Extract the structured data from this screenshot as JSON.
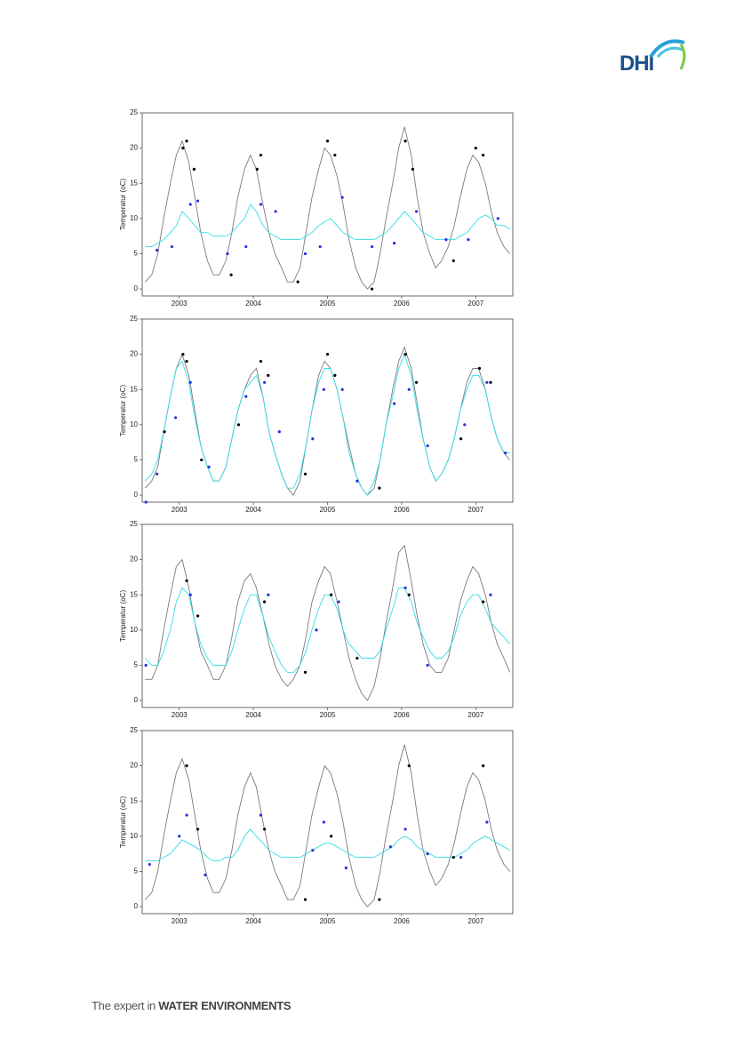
{
  "logo": "DHI",
  "footer": {
    "lead": "The expert in",
    "strong": "WATER ENVIRONMENTS"
  },
  "chart_data": [
    {
      "type": "line",
      "y_label": "Temperatur (oC)",
      "xlim": [
        2003,
        2008
      ],
      "ylim": [
        -1,
        25
      ],
      "yticks": [
        0,
        5,
        10,
        15,
        20,
        25
      ],
      "xticks": [
        {
          "value": 2003.5,
          "label": "2003"
        },
        {
          "value": 2004.5,
          "label": "2004"
        },
        {
          "value": 2005.5,
          "label": "2005"
        },
        {
          "value": 2006.5,
          "label": "2006"
        },
        {
          "value": 2007.5,
          "label": "2007"
        }
      ],
      "x": [
        2003.04,
        2003.13,
        2003.21,
        2003.29,
        2003.38,
        2003.46,
        2003.54,
        2003.63,
        2003.71,
        2003.79,
        2003.88,
        2003.96,
        2004.04,
        2004.13,
        2004.21,
        2004.29,
        2004.38,
        2004.46,
        2004.54,
        2004.63,
        2004.71,
        2004.79,
        2004.88,
        2004.96,
        2005.04,
        2005.13,
        2005.21,
        2005.29,
        2005.38,
        2005.46,
        2005.54,
        2005.63,
        2005.71,
        2005.79,
        2005.88,
        2005.96,
        2006.04,
        2006.13,
        2006.21,
        2006.29,
        2006.38,
        2006.46,
        2006.54,
        2006.63,
        2006.71,
        2006.79,
        2006.88,
        2006.96,
        2007.04,
        2007.13,
        2007.21,
        2007.29,
        2007.38,
        2007.46,
        2007.54,
        2007.63,
        2007.71,
        2007.79,
        2007.88,
        2007.96
      ],
      "series": [
        {
          "color": "#7a7a7a",
          "values": [
            1,
            2,
            5,
            10,
            15,
            19,
            21,
            18,
            13,
            8,
            4,
            2,
            2,
            4,
            8,
            13,
            17,
            19,
            17,
            12,
            8,
            5,
            3,
            1,
            1,
            3,
            8,
            13,
            17,
            20,
            19,
            16,
            12,
            7,
            3,
            1,
            0,
            1,
            5,
            10,
            15,
            20,
            23,
            19,
            13,
            8,
            5,
            3,
            4,
            6,
            9,
            13,
            17,
            19,
            18,
            15,
            11,
            8,
            6,
            5
          ]
        },
        {
          "color": "#33dde6",
          "values": [
            6,
            6,
            6.5,
            7,
            8,
            9,
            11,
            10,
            9,
            8,
            8,
            7.5,
            7.5,
            7.5,
            8,
            9,
            10,
            12,
            11,
            9,
            8,
            7.5,
            7,
            7,
            7,
            7,
            7.5,
            8,
            9,
            9.5,
            10,
            9,
            8,
            7.5,
            7,
            7,
            7,
            7,
            7.5,
            8,
            9,
            10,
            11,
            10,
            9,
            8,
            7.5,
            7,
            7,
            7,
            7,
            7.5,
            8,
            9,
            10,
            10.5,
            10,
            9,
            9,
            8.5
          ]
        }
      ],
      "scatter": [
        {
          "color": "#000000",
          "x": [
            2003.55,
            2003.6,
            2003.7,
            2004.2,
            2004.55,
            2004.6,
            2005.1,
            2005.5,
            2005.6,
            2006.1,
            2006.55,
            2006.65,
            2007.2,
            2007.5,
            2007.6
          ],
          "values": [
            20,
            21,
            17,
            2,
            17,
            19,
            1,
            21,
            19,
            0,
            21,
            17,
            4,
            20,
            19
          ]
        },
        {
          "color": "#2233dd",
          "x": [
            2003.2,
            2003.4,
            2003.65,
            2003.75,
            2004.15,
            2004.4,
            2004.6,
            2004.8,
            2005.2,
            2005.4,
            2005.7,
            2006.1,
            2006.4,
            2006.7,
            2007.1,
            2007.4,
            2007.8
          ],
          "values": [
            5.5,
            6,
            12,
            12.5,
            5,
            6,
            12,
            11,
            5,
            6,
            13,
            6,
            6.5,
            11,
            7,
            7,
            10
          ]
        }
      ]
    },
    {
      "type": "line",
      "y_label": "Temperatur (oC)",
      "xlim": [
        2003,
        2008
      ],
      "ylim": [
        -1,
        25
      ],
      "yticks": [
        0,
        5,
        10,
        15,
        20,
        25
      ],
      "xticks": [
        {
          "value": 2003.5,
          "label": "2003"
        },
        {
          "value": 2004.5,
          "label": "2004"
        },
        {
          "value": 2005.5,
          "label": "2005"
        },
        {
          "value": 2006.5,
          "label": "2006"
        },
        {
          "value": 2007.5,
          "label": "2007"
        }
      ],
      "x": [
        2003.04,
        2003.13,
        2003.21,
        2003.29,
        2003.38,
        2003.46,
        2003.54,
        2003.63,
        2003.71,
        2003.79,
        2003.88,
        2003.96,
        2004.04,
        2004.13,
        2004.21,
        2004.29,
        2004.38,
        2004.46,
        2004.54,
        2004.63,
        2004.71,
        2004.79,
        2004.88,
        2004.96,
        2005.04,
        2005.13,
        2005.21,
        2005.29,
        2005.38,
        2005.46,
        2005.54,
        2005.63,
        2005.71,
        2005.79,
        2005.88,
        2005.96,
        2006.04,
        2006.13,
        2006.21,
        2006.29,
        2006.38,
        2006.46,
        2006.54,
        2006.63,
        2006.71,
        2006.79,
        2006.88,
        2006.96,
        2007.04,
        2007.13,
        2007.21,
        2007.29,
        2007.38,
        2007.46,
        2007.54,
        2007.63,
        2007.71,
        2007.79,
        2007.88,
        2007.96
      ],
      "series": [
        {
          "color": "#7a7a7a",
          "values": [
            1,
            2,
            4,
            9,
            14,
            18,
            20,
            17,
            12,
            7,
            4,
            2,
            2,
            4,
            8,
            12,
            15,
            17,
            18,
            14,
            9,
            6,
            3,
            1,
            0,
            2,
            7,
            12,
            17,
            19,
            18,
            15,
            11,
            7,
            3,
            1,
            0,
            1,
            5,
            10,
            15,
            19,
            21,
            18,
            13,
            8,
            4,
            2,
            3,
            5,
            8,
            12,
            16,
            18,
            18,
            15,
            11,
            8,
            6,
            5
          ]
        },
        {
          "color": "#33dde6",
          "values": [
            2,
            3,
            5,
            9,
            14,
            18,
            19,
            16,
            11,
            7,
            4,
            2,
            2,
            4,
            8,
            12,
            15,
            16,
            17,
            14,
            9,
            6,
            3,
            1,
            1,
            3,
            7,
            12,
            16,
            18,
            18,
            15,
            11,
            6,
            3,
            1,
            0,
            2,
            5,
            10,
            14,
            18,
            20,
            17,
            12,
            8,
            4,
            2,
            3,
            5,
            8,
            12,
            15,
            17,
            17,
            15,
            11,
            8,
            6,
            6
          ]
        }
      ],
      "scatter": [
        {
          "color": "#000000",
          "x": [
            2003.3,
            2003.55,
            2003.6,
            2003.8,
            2004.3,
            2004.6,
            2004.7,
            2005.2,
            2005.5,
            2005.6,
            2006.2,
            2006.55,
            2006.7,
            2007.3,
            2007.55,
            2007.7
          ],
          "values": [
            9,
            20,
            19,
            5,
            10,
            19,
            17,
            3,
            20,
            17,
            1,
            20,
            16,
            8,
            18,
            16
          ]
        },
        {
          "color": "#2233dd",
          "x": [
            2003.05,
            2003.2,
            2003.45,
            2003.65,
            2003.9,
            2004.4,
            2004.65,
            2004.85,
            2005.3,
            2005.45,
            2005.7,
            2005.9,
            2006.4,
            2006.6,
            2006.85,
            2007.35,
            2007.65,
            2007.9
          ],
          "values": [
            -1,
            3,
            11,
            16,
            4,
            14,
            16,
            9,
            8,
            15,
            15,
            2,
            13,
            15,
            7,
            10,
            16,
            6
          ]
        }
      ]
    },
    {
      "type": "line",
      "y_label": "Temperatur (oC)",
      "xlim": [
        2003,
        2008
      ],
      "ylim": [
        -1,
        25
      ],
      "yticks": [
        0,
        5,
        10,
        15,
        20,
        25
      ],
      "xticks": [
        {
          "value": 2003.5,
          "label": "2003"
        },
        {
          "value": 2004.5,
          "label": "2004"
        },
        {
          "value": 2005.5,
          "label": "2005"
        },
        {
          "value": 2006.5,
          "label": "2006"
        },
        {
          "value": 2007.5,
          "label": "2007"
        }
      ],
      "x": [
        2003.04,
        2003.13,
        2003.21,
        2003.29,
        2003.38,
        2003.46,
        2003.54,
        2003.63,
        2003.71,
        2003.79,
        2003.88,
        2003.96,
        2004.04,
        2004.13,
        2004.21,
        2004.29,
        2004.38,
        2004.46,
        2004.54,
        2004.63,
        2004.71,
        2004.79,
        2004.88,
        2004.96,
        2005.04,
        2005.13,
        2005.21,
        2005.29,
        2005.38,
        2005.46,
        2005.54,
        2005.63,
        2005.71,
        2005.79,
        2005.88,
        2005.96,
        2006.04,
        2006.13,
        2006.21,
        2006.29,
        2006.38,
        2006.46,
        2006.54,
        2006.63,
        2006.71,
        2006.79,
        2006.88,
        2006.96,
        2007.04,
        2007.13,
        2007.21,
        2007.29,
        2007.38,
        2007.46,
        2007.54,
        2007.63,
        2007.71,
        2007.79,
        2007.88,
        2007.96
      ],
      "series": [
        {
          "color": "#7a7a7a",
          "values": [
            3,
            3,
            5,
            10,
            15,
            19,
            20,
            16,
            11,
            7,
            5,
            3,
            3,
            5,
            9,
            14,
            17,
            18,
            16,
            12,
            8,
            5,
            3,
            2,
            3,
            5,
            9,
            14,
            17,
            19,
            18,
            14,
            10,
            6,
            3,
            1,
            0,
            2,
            6,
            11,
            16,
            21,
            22,
            17,
            12,
            8,
            5,
            4,
            4,
            6,
            10,
            14,
            17,
            19,
            18,
            15,
            11,
            8,
            6,
            4
          ]
        },
        {
          "color": "#33dde6",
          "values": [
            6,
            5,
            5,
            7,
            10,
            14,
            16,
            15,
            11,
            8,
            6,
            5,
            5,
            5,
            7,
            10,
            13,
            15,
            15,
            12,
            9,
            7,
            5,
            4,
            4,
            5,
            7,
            10,
            13,
            15,
            15,
            13,
            10,
            8,
            7,
            6,
            6,
            6,
            7,
            10,
            13,
            16,
            16,
            14,
            11,
            9,
            7,
            6,
            6,
            7,
            9,
            12,
            14,
            15,
            15,
            13,
            11,
            10,
            9,
            8
          ]
        }
      ],
      "scatter": [
        {
          "color": "#000000",
          "x": [
            2003.6,
            2003.75,
            2004.65,
            2005.2,
            2005.55,
            2005.9,
            2006.6,
            2007.6
          ],
          "values": [
            17,
            12,
            14,
            4,
            15,
            6,
            15,
            14
          ]
        },
        {
          "color": "#2233dd",
          "x": [
            2003.05,
            2003.65,
            2004.7,
            2005.35,
            2005.65,
            2006.55,
            2006.85,
            2007.7
          ],
          "values": [
            5,
            15,
            15,
            10,
            14,
            16,
            5,
            15
          ]
        }
      ]
    },
    {
      "type": "line",
      "y_label": "Temperatur (oC)",
      "xlim": [
        2003,
        2008
      ],
      "ylim": [
        -1,
        25
      ],
      "yticks": [
        0,
        5,
        10,
        15,
        20,
        25
      ],
      "xticks": [
        {
          "value": 2003.5,
          "label": "2003"
        },
        {
          "value": 2004.5,
          "label": "2004"
        },
        {
          "value": 2005.5,
          "label": "2005"
        },
        {
          "value": 2006.5,
          "label": "2006"
        },
        {
          "value": 2007.5,
          "label": "2007"
        }
      ],
      "x": [
        2003.04,
        2003.13,
        2003.21,
        2003.29,
        2003.38,
        2003.46,
        2003.54,
        2003.63,
        2003.71,
        2003.79,
        2003.88,
        2003.96,
        2004.04,
        2004.13,
        2004.21,
        2004.29,
        2004.38,
        2004.46,
        2004.54,
        2004.63,
        2004.71,
        2004.79,
        2004.88,
        2004.96,
        2005.04,
        2005.13,
        2005.21,
        2005.29,
        2005.38,
        2005.46,
        2005.54,
        2005.63,
        2005.71,
        2005.79,
        2005.88,
        2005.96,
        2006.04,
        2006.13,
        2006.21,
        2006.29,
        2006.38,
        2006.46,
        2006.54,
        2006.63,
        2006.71,
        2006.79,
        2006.88,
        2006.96,
        2007.04,
        2007.13,
        2007.21,
        2007.29,
        2007.38,
        2007.46,
        2007.54,
        2007.63,
        2007.71,
        2007.79,
        2007.88,
        2007.96
      ],
      "series": [
        {
          "color": "#7a7a7a",
          "values": [
            1,
            2,
            5,
            10,
            15,
            19,
            21,
            18,
            13,
            8,
            4,
            2,
            2,
            4,
            8,
            13,
            17,
            19,
            17,
            12,
            8,
            5,
            3,
            1,
            1,
            3,
            8,
            13,
            17,
            20,
            19,
            16,
            12,
            7,
            3,
            1,
            0,
            1,
            5,
            10,
            15,
            20,
            23,
            19,
            13,
            8,
            5,
            3,
            4,
            6,
            9,
            13,
            17,
            19,
            18,
            15,
            11,
            8,
            6,
            5
          ]
        },
        {
          "color": "#33dde6",
          "values": [
            6.5,
            6.5,
            6.5,
            7,
            7.5,
            8.5,
            9.5,
            9,
            8.5,
            8,
            7,
            6.5,
            6.5,
            7,
            7,
            8,
            10,
            11,
            10,
            9,
            8,
            7.5,
            7,
            7,
            7,
            7,
            7.5,
            8,
            8.5,
            9,
            9,
            8.5,
            8,
            7.5,
            7,
            7,
            7,
            7,
            7.5,
            8,
            8.5,
            9.5,
            10,
            9.5,
            8.5,
            8,
            7.5,
            7,
            7,
            7,
            7,
            7.5,
            8,
            9,
            9.5,
            10,
            9.5,
            9,
            8.5,
            8
          ]
        }
      ],
      "scatter": [
        {
          "color": "#000000",
          "x": [
            2003.6,
            2003.75,
            2004.65,
            2005.2,
            2005.55,
            2006.2,
            2006.6,
            2007.2,
            2007.6
          ],
          "values": [
            20,
            11,
            11,
            1,
            10,
            1,
            20,
            7,
            20
          ]
        },
        {
          "color": "#2233dd",
          "x": [
            2003.1,
            2003.5,
            2003.6,
            2003.85,
            2004.6,
            2005.3,
            2005.45,
            2005.75,
            2006.35,
            2006.55,
            2006.85,
            2007.3,
            2007.65
          ],
          "values": [
            6,
            10,
            13,
            4.5,
            13,
            8,
            12,
            5.5,
            8.5,
            11,
            7.5,
            7,
            12
          ]
        }
      ]
    }
  ]
}
